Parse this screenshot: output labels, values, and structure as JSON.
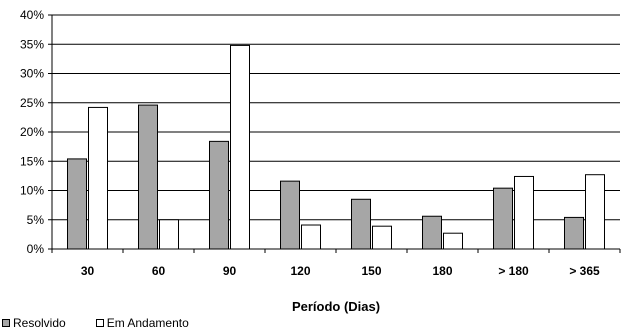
{
  "chart_data": {
    "type": "bar",
    "xlabel": "Período (Dias)",
    "ylabel": "",
    "categories": [
      "30",
      "60",
      "90",
      "120",
      "150",
      "180",
      "> 180",
      "> 365"
    ],
    "ylim": [
      0,
      40
    ],
    "yticks": [
      0,
      5,
      10,
      15,
      20,
      25,
      30,
      35,
      40
    ],
    "ytick_format": "%",
    "grid": true,
    "legend_position": "bottom-left",
    "series": [
      {
        "name": "Resolvido",
        "color": "#a6a6a6",
        "values": [
          15.4,
          24.6,
          18.4,
          11.6,
          8.5,
          5.6,
          10.4,
          5.4
        ]
      },
      {
        "name": "Em Andamento",
        "color": "#ffffff",
        "values": [
          24.2,
          5.0,
          34.8,
          4.1,
          3.9,
          2.7,
          12.4,
          12.7
        ]
      }
    ]
  }
}
